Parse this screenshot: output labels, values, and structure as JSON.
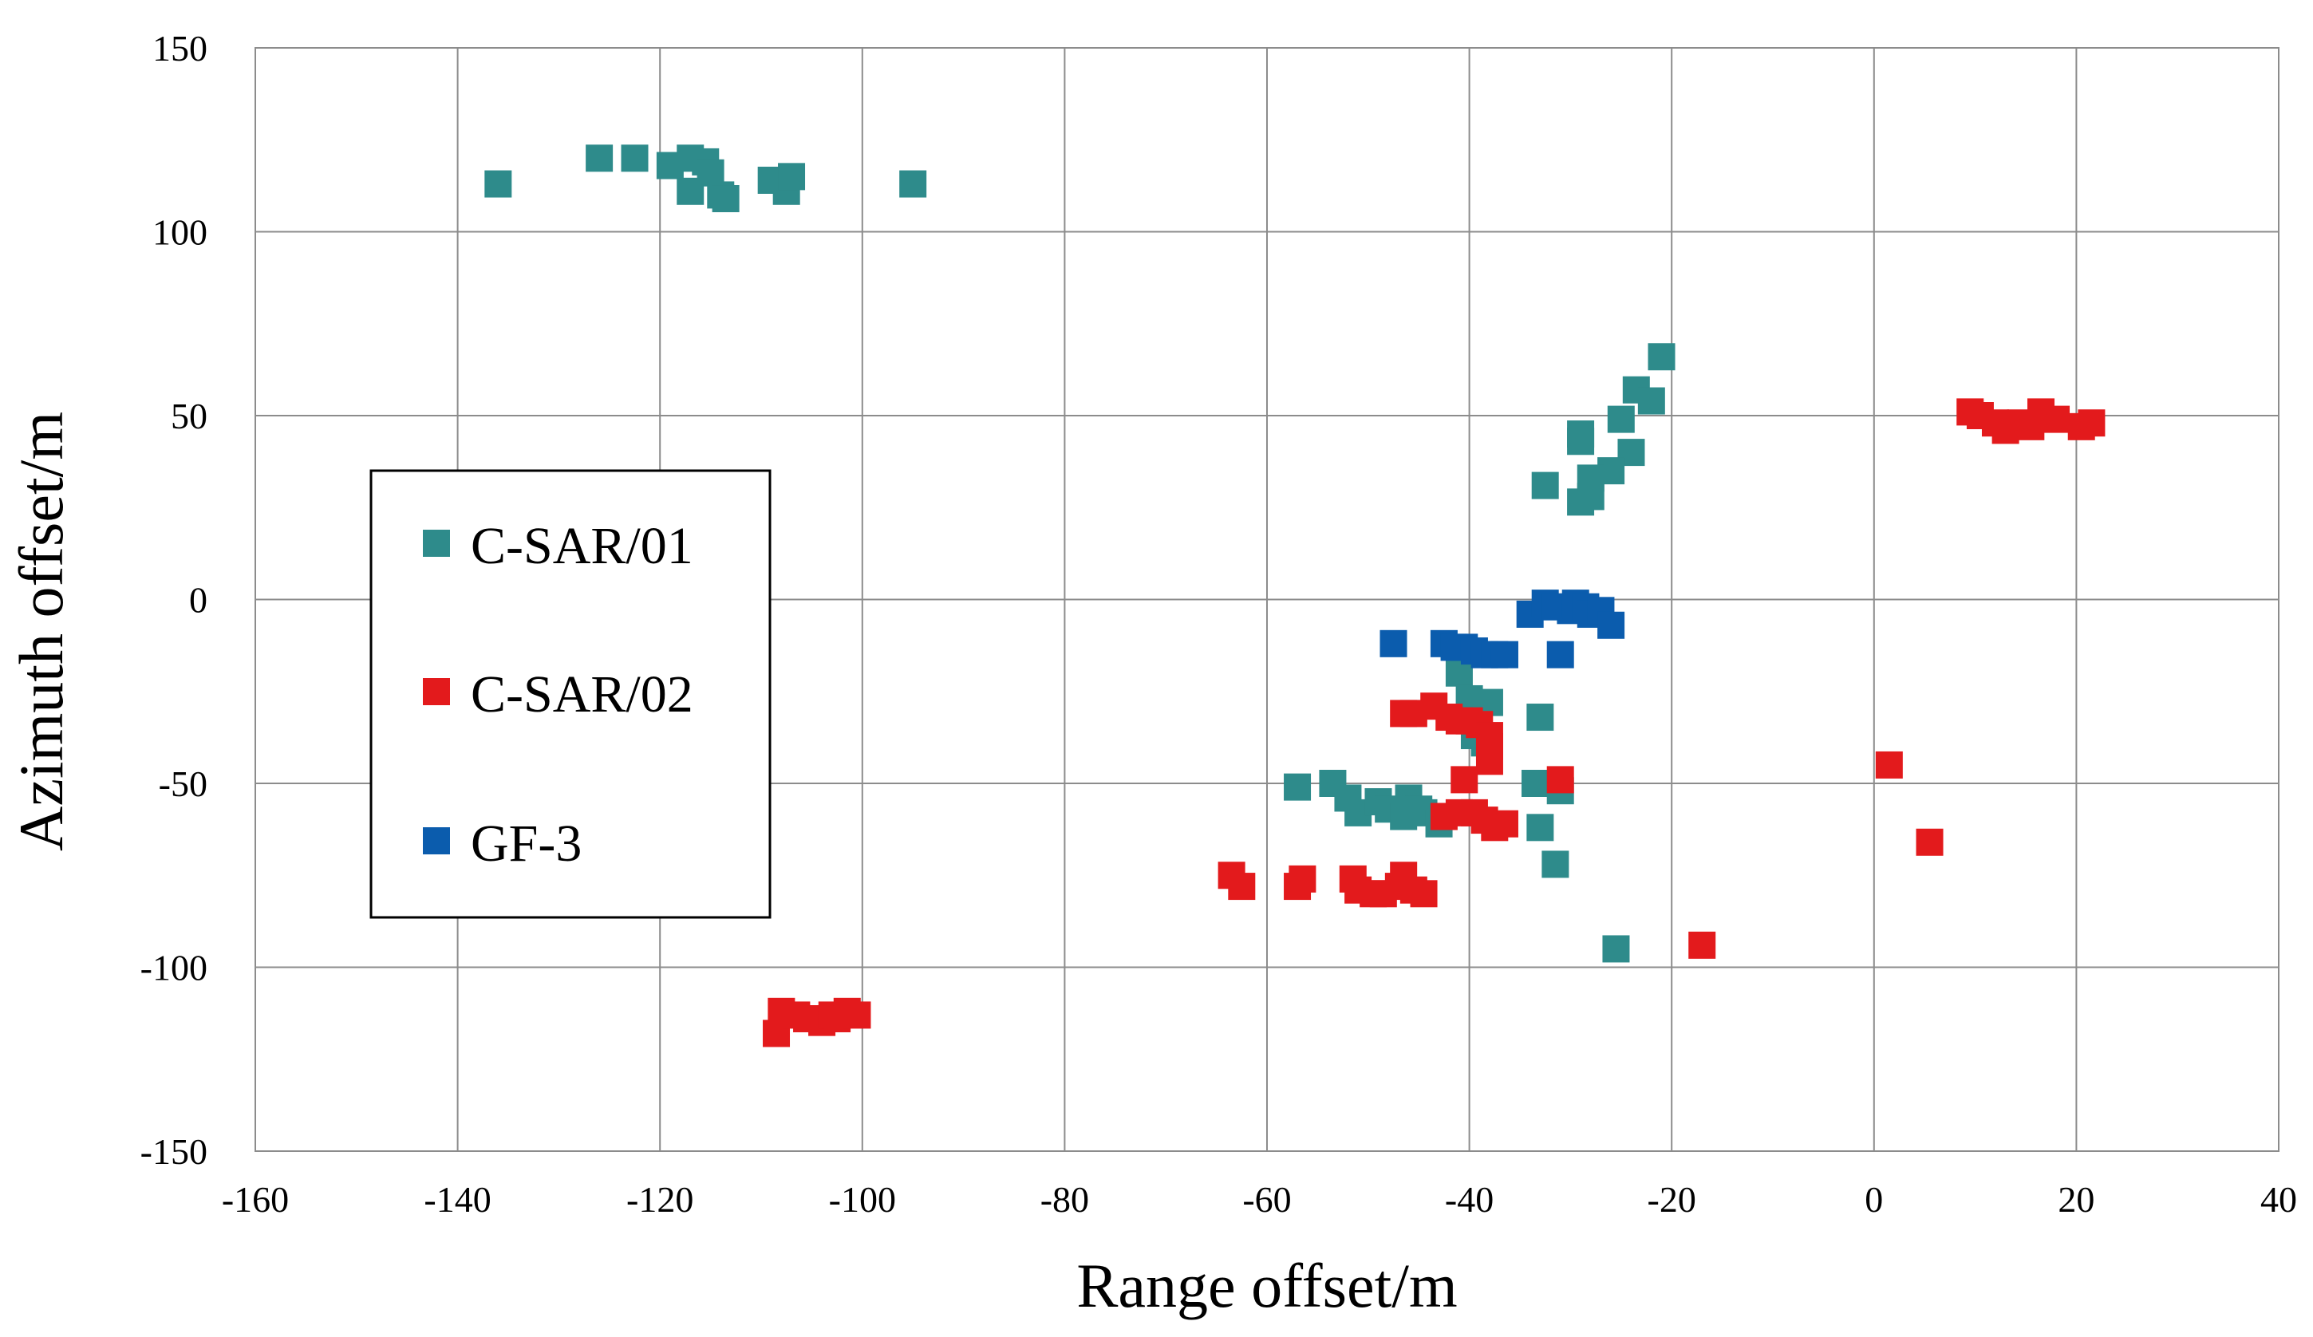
{
  "chart_data": {
    "type": "scatter",
    "title": "",
    "xlabel": "Range offset/m",
    "ylabel": "Azimuth offset/m",
    "xlim": [
      -160,
      40
    ],
    "ylim": [
      -150,
      150
    ],
    "xticks": [
      -160,
      -140,
      -120,
      -100,
      -80,
      -60,
      -40,
      -20,
      0,
      20,
      40
    ],
    "yticks": [
      -150,
      -100,
      -50,
      0,
      50,
      100,
      150
    ],
    "xtick_labels": [
      "-160",
      "-140",
      "-120",
      "-100",
      "-80",
      "-60",
      "-40",
      "-20",
      "0",
      "20",
      "40"
    ],
    "ytick_labels": [
      "-150",
      "-100",
      "-50",
      "0",
      "50",
      "100",
      "150"
    ],
    "grid": true,
    "legend_position": "center-left",
    "series": [
      {
        "name": "C-SAR/01",
        "color": "#2E8B8B",
        "marker": "square",
        "points": [
          [
            -136,
            113
          ],
          [
            -126,
            120
          ],
          [
            -122.5,
            120
          ],
          [
            -119,
            118
          ],
          [
            -117,
            120
          ],
          [
            -115.5,
            119
          ],
          [
            -115,
            116
          ],
          [
            -117,
            111
          ],
          [
            -114,
            110
          ],
          [
            -113.5,
            109
          ],
          [
            -109,
            114
          ],
          [
            -107.5,
            111
          ],
          [
            -107,
            115
          ],
          [
            -95,
            113
          ],
          [
            -21,
            66
          ],
          [
            -23.5,
            57
          ],
          [
            -22,
            54
          ],
          [
            -25,
            49
          ],
          [
            -29,
            45
          ],
          [
            -29,
            43
          ],
          [
            -24,
            40
          ],
          [
            -26,
            35
          ],
          [
            -28,
            33
          ],
          [
            -32.5,
            31
          ],
          [
            -29,
            26.5
          ],
          [
            -28,
            28
          ],
          [
            -41,
            -20
          ],
          [
            -40,
            -27
          ],
          [
            -38,
            -28
          ],
          [
            -33,
            -32
          ],
          [
            -39.5,
            -37
          ],
          [
            -38.5,
            -39
          ],
          [
            -57,
            -51
          ],
          [
            -53.5,
            -50
          ],
          [
            -52,
            -54
          ],
          [
            -51,
            -58
          ],
          [
            -49,
            -55
          ],
          [
            -48,
            -57
          ],
          [
            -46,
            -54
          ],
          [
            -46.5,
            -59
          ],
          [
            -45,
            -57
          ],
          [
            -44.5,
            -58
          ],
          [
            -43,
            -61
          ],
          [
            -33.5,
            -50
          ],
          [
            -31,
            -52
          ],
          [
            -33,
            -62
          ],
          [
            -31.5,
            -72
          ],
          [
            -25.5,
            -95
          ]
        ]
      },
      {
        "name": "C-SAR/02",
        "color": "#E31A1C",
        "marker": "square",
        "points": [
          [
            -108.5,
            -118
          ],
          [
            -108,
            -112
          ],
          [
            -106.5,
            -113
          ],
          [
            -105.5,
            -114
          ],
          [
            -104,
            -115
          ],
          [
            -103,
            -113
          ],
          [
            -102.5,
            -114
          ],
          [
            -101.5,
            -112
          ],
          [
            -100.5,
            -113
          ],
          [
            -63.5,
            -75
          ],
          [
            -62.5,
            -78
          ],
          [
            -57,
            -78
          ],
          [
            -56.5,
            -76
          ],
          [
            -51.5,
            -76
          ],
          [
            -51,
            -79
          ],
          [
            -49.5,
            -80
          ],
          [
            -48.5,
            -80
          ],
          [
            -47,
            -78
          ],
          [
            -46.5,
            -75
          ],
          [
            -45.5,
            -79
          ],
          [
            -44.5,
            -80
          ],
          [
            -46.5,
            -31
          ],
          [
            -45.5,
            -31
          ],
          [
            -43.5,
            -29
          ],
          [
            -42,
            -32
          ],
          [
            -41,
            -33
          ],
          [
            -40,
            -33
          ],
          [
            -39,
            -34
          ],
          [
            -38,
            -37
          ],
          [
            -38,
            -40
          ],
          [
            -38,
            -44
          ],
          [
            -40.5,
            -49
          ],
          [
            -42.5,
            -59
          ],
          [
            -41,
            -58
          ],
          [
            -39.5,
            -58
          ],
          [
            -38.5,
            -60
          ],
          [
            -37.5,
            -62
          ],
          [
            -36.5,
            -61
          ],
          [
            -31,
            -49
          ],
          [
            -17,
            -94
          ],
          [
            1.5,
            -45
          ],
          [
            5.5,
            -66
          ],
          [
            9.5,
            51
          ],
          [
            10.5,
            50
          ],
          [
            12,
            48
          ],
          [
            13,
            46
          ],
          [
            14.5,
            48
          ],
          [
            15.5,
            47
          ],
          [
            16.5,
            51
          ],
          [
            18,
            49
          ],
          [
            20.5,
            47
          ],
          [
            21.5,
            48
          ]
        ]
      },
      {
        "name": "GF-3",
        "color": "#0B5CAD",
        "marker": "square",
        "points": [
          [
            -47.5,
            -12
          ],
          [
            -42.5,
            -12
          ],
          [
            -41.5,
            -13
          ],
          [
            -40.5,
            -13
          ],
          [
            -39.5,
            -14
          ],
          [
            -38.5,
            -15
          ],
          [
            -37.5,
            -15
          ],
          [
            -36.5,
            -15
          ],
          [
            -34,
            -4
          ],
          [
            -32.5,
            -1
          ],
          [
            -31.5,
            -2
          ],
          [
            -31,
            -15
          ],
          [
            -30,
            -3
          ],
          [
            -29.5,
            -1
          ],
          [
            -28.5,
            -2
          ],
          [
            -28,
            -4
          ],
          [
            -27,
            -3
          ],
          [
            -26,
            -7
          ]
        ]
      }
    ]
  }
}
